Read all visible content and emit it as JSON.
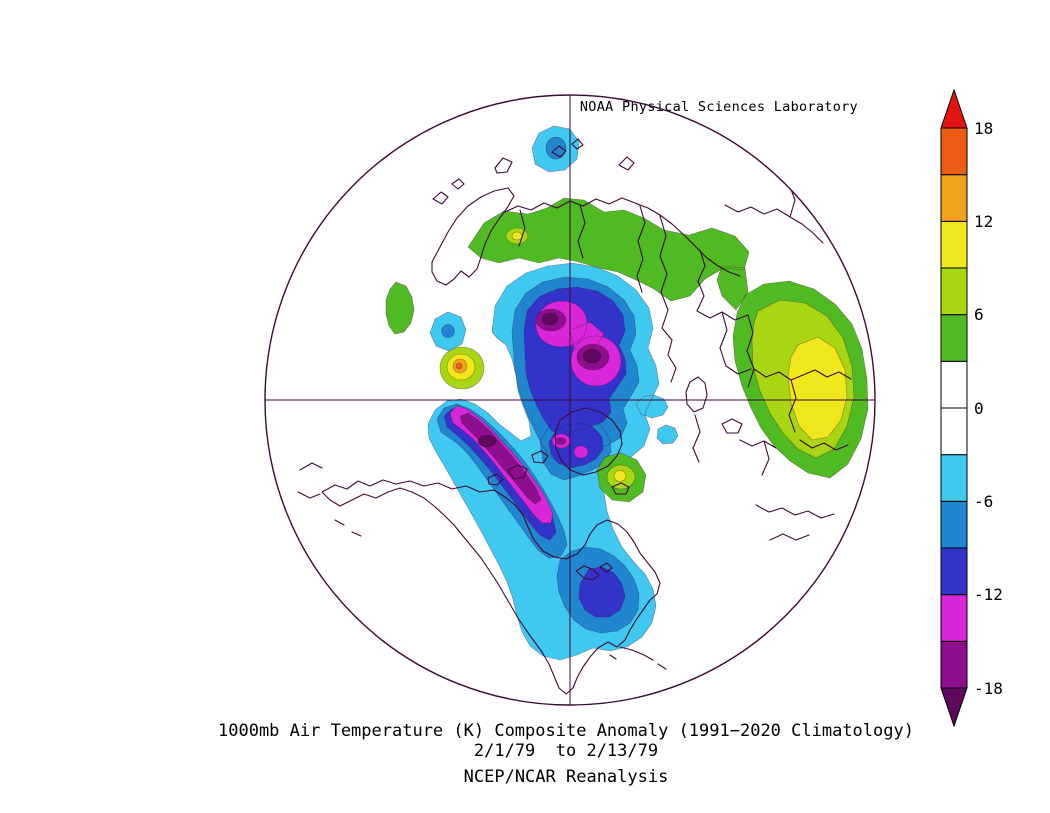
{
  "chart_data": {
    "type": "heatmap",
    "variant": "filled-contour polar stereographic map, Northern Hemisphere",
    "attribution": "NOAA Physical Sciences Laboratory",
    "title": "1000mb Air Temperature (K) Composite Anomaly (1991−2020 Climatology)",
    "subtitle": "2/1/79  to 2/13/79",
    "dataset": "NCEP/NCAR Reanalysis",
    "units": "K",
    "contour_interval": 3,
    "colorbar": {
      "orientation": "vertical-right",
      "tick_labels": [
        "18",
        "12",
        "6",
        "0",
        "-6",
        "-12",
        "-18"
      ],
      "levels": [
        -18,
        -15,
        -12,
        -9,
        -6,
        -3,
        0,
        3,
        6,
        9,
        12,
        15,
        18
      ],
      "palette": [
        {
          "range": "< -18",
          "color": "#5e085e",
          "arrow": "down"
        },
        {
          "range": "-18 to -15",
          "color": "#8d0f8d"
        },
        {
          "range": "-15 to -12",
          "color": "#d926d9"
        },
        {
          "range": "-12 to -9",
          "color": "#3333cc"
        },
        {
          "range": "-9 to -6",
          "color": "#1f86cf"
        },
        {
          "range": "-6 to -3",
          "color": "#3fc8f0"
        },
        {
          "range": "-3 to 0",
          "color": "#ffffff"
        },
        {
          "range": "0 to 3",
          "color": "#ffffff"
        },
        {
          "range": "3 to 6",
          "color": "#4fba22"
        },
        {
          "range": "6 to 9",
          "color": "#a9d613"
        },
        {
          "range": "9 to 12",
          "color": "#f0e71c"
        },
        {
          "range": "12 to 15",
          "color": "#f2a21a"
        },
        {
          "range": "15 to 18",
          "color": "#ea5d13"
        },
        {
          "range": "> 18",
          "color": "#e31414",
          "arrow": "up"
        }
      ]
    },
    "colors": {
      "green": "#4fba22",
      "yellow_green": "#a9d613",
      "yellow": "#f0e71c",
      "orange": "#f2a21a",
      "orange_red": "#ea5d13",
      "cyan": "#3fc8f0",
      "blue": "#1f86cf",
      "indigo": "#3333cc",
      "magenta": "#d926d9",
      "purple": "#8d0f8d",
      "dark_purple": "#5e085e",
      "coast": "#3c0a34",
      "background": "#ffffff"
    },
    "anomaly_centers": [
      {
        "region": "central Siberia (primary core)",
        "sign": "cold",
        "peak": "< -18 K"
      },
      {
        "region": "central Siberia (secondary core)",
        "sign": "cold",
        "peak": "< -18 K"
      },
      {
        "region": "Greenland / Canadian Arctic",
        "sign": "cold",
        "peak": "-15 to -12 K"
      },
      {
        "region": "western North America (Rockies band)",
        "sign": "cold",
        "peak": "-18 to -15 K"
      },
      {
        "region": "eastern North America",
        "sign": "cold",
        "peak": "-12 to -9 K"
      },
      {
        "region": "Arctic Ocean near top of map",
        "sign": "cold",
        "peak": "-9 to -6 K"
      },
      {
        "region": "northern Eurasia coastal band",
        "sign": "warm",
        "peak": "6 to 9 K"
      },
      {
        "region": "central Asia",
        "sign": "warm",
        "peak": "9 to 12 K"
      },
      {
        "region": "Norwegian Sea spot",
        "sign": "warm",
        "peak": "12 to 15 K"
      },
      {
        "region": "Iceland area spot",
        "sign": "warm",
        "peak": "9 to 12 K"
      }
    ]
  }
}
